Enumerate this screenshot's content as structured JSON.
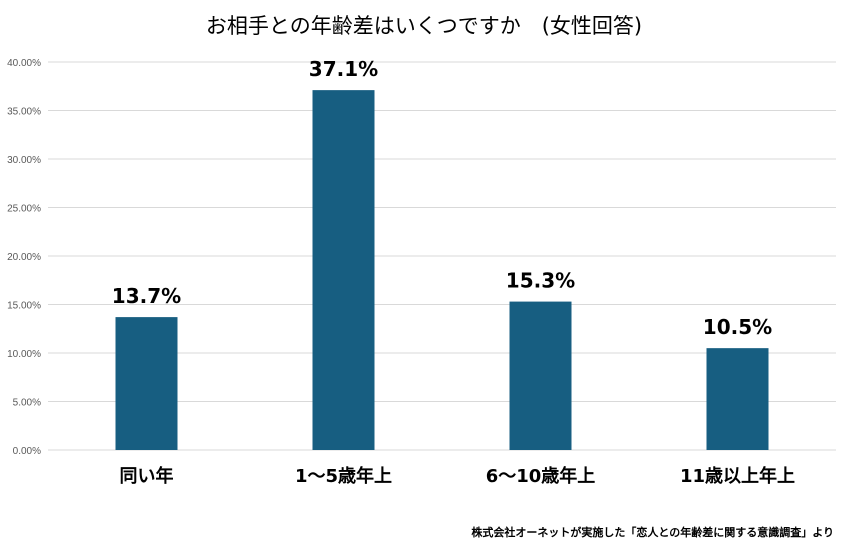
{
  "chart_data": {
    "type": "bar",
    "title": "お相手との年齢差はいくつですか　(女性回答)",
    "categories": [
      "同い年",
      "1～5歳年上",
      "6～10歳年上",
      "11歳以上年上"
    ],
    "values": [
      13.7,
      37.1,
      15.3,
      10.5
    ],
    "data_labels": [
      "13.7%",
      "37.1%",
      "15.3%",
      "10.5%"
    ],
    "yticks": [
      "0.00%",
      "5.00%",
      "10.00%",
      "15.00%",
      "20.00%",
      "25.00%",
      "30.00%",
      "35.00%",
      "40.00%"
    ],
    "ylim": [
      0,
      40
    ],
    "grid": true,
    "bar_color": "#175E81",
    "grid_color": "#D9D9D9"
  },
  "source_note": "株式会社オーネットが実施した「恋人との年齢差に関する意識調査」より"
}
